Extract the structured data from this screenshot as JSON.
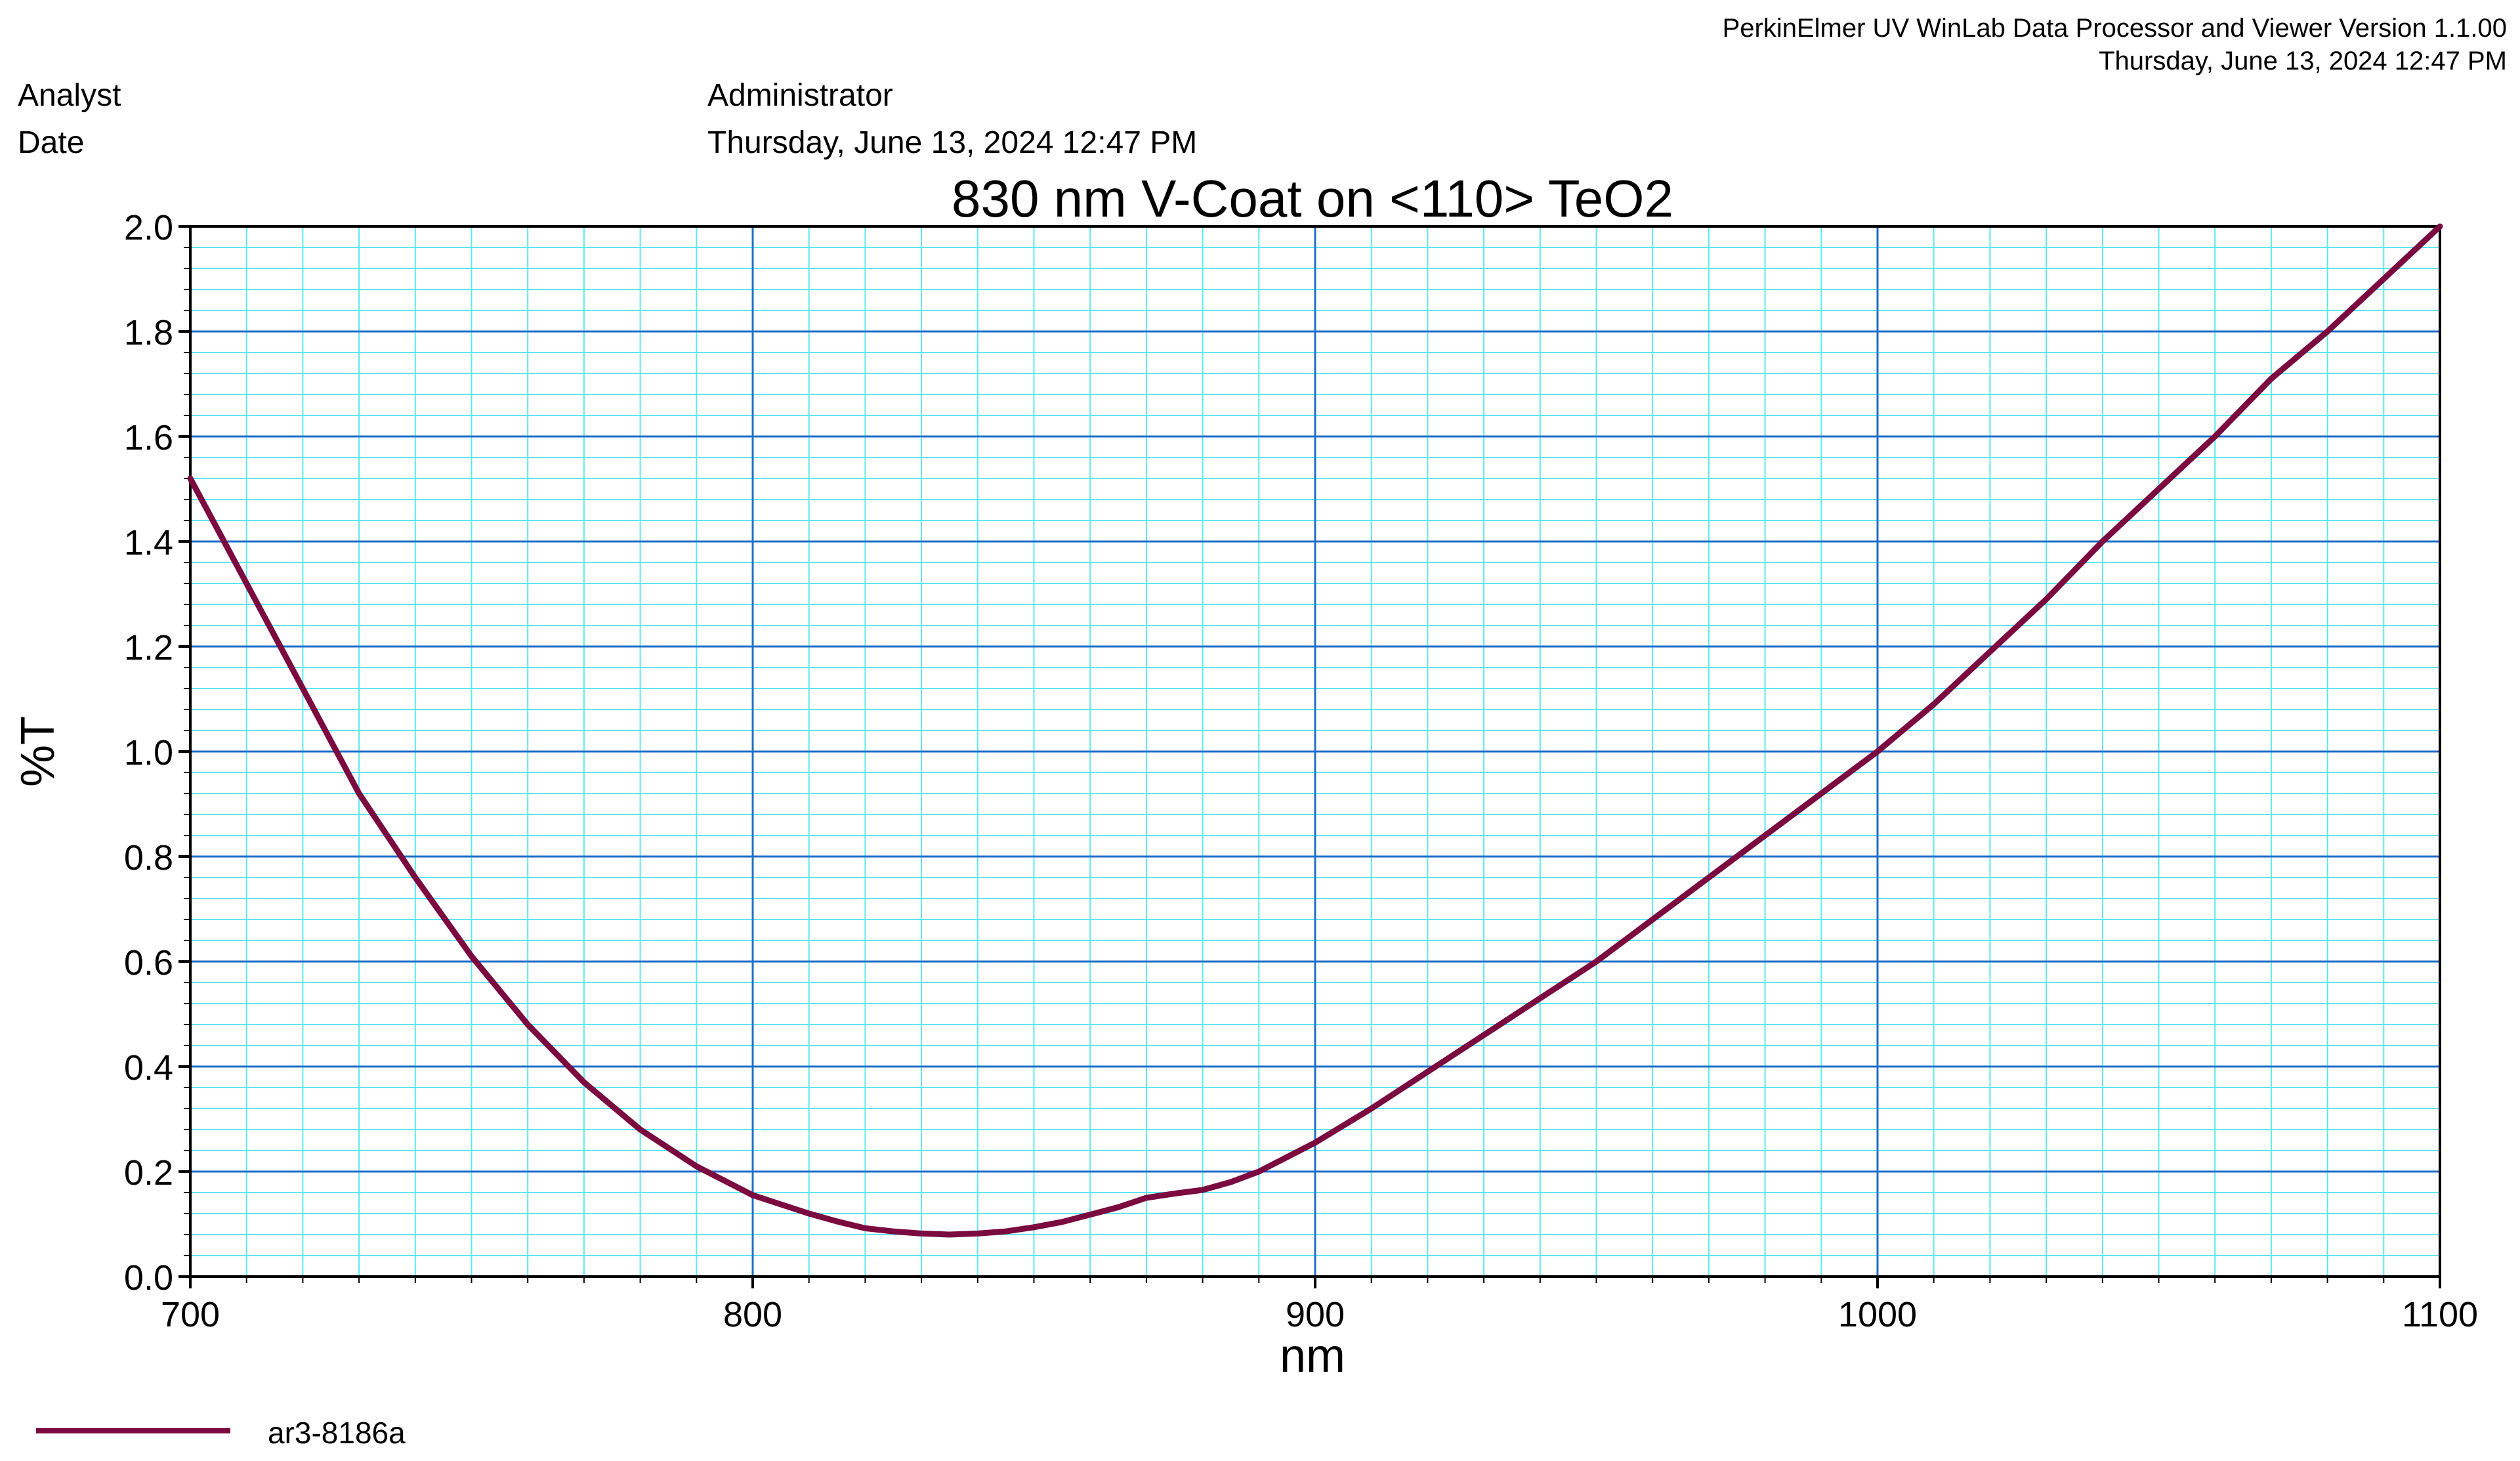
{
  "header": {
    "software": "PerkinElmer UV WinLab Data Processor and Viewer Version 1.1.00",
    "datetime": "Thursday, June 13, 2024 12:47 PM"
  },
  "meta": {
    "analyst_label": "Analyst",
    "analyst_value": "Administrator",
    "date_label": "Date",
    "date_value": "Thursday, June 13, 2024 12:47 PM"
  },
  "colors": {
    "series": "#7a0a3f",
    "minor_grid": "#5ce8f0",
    "major_grid": "#1e6fc8"
  },
  "chart_data": {
    "type": "line",
    "title": "830 nm V-Coat on <110> TeO2",
    "xlabel": "nm",
    "ylabel": "%T",
    "xlim": [
      700,
      1100
    ],
    "ylim": [
      0.0,
      2.0
    ],
    "xticks": [
      "700",
      "800",
      "900",
      "1000",
      "1100"
    ],
    "yticks": [
      "0.0",
      "0.2",
      "0.4",
      "0.6",
      "0.8",
      "1.0",
      "1.2",
      "1.4",
      "1.6",
      "1.8",
      "2.0"
    ],
    "grid": true,
    "legend_position": "bottom-left",
    "series": [
      {
        "name": "ar3-8186a",
        "x": [
          700,
          710,
          720,
          730,
          740,
          750,
          760,
          770,
          780,
          790,
          800,
          810,
          815,
          820,
          825,
          830,
          835,
          840,
          845,
          850,
          855,
          860,
          865,
          870,
          875,
          880,
          885,
          890,
          900,
          910,
          920,
          930,
          940,
          950,
          960,
          970,
          980,
          990,
          1000,
          1010,
          1020,
          1030,
          1040,
          1050,
          1060,
          1070,
          1080,
          1090,
          1100
        ],
        "y": [
          1.52,
          1.32,
          1.12,
          0.92,
          0.76,
          0.61,
          0.48,
          0.37,
          0.28,
          0.21,
          0.155,
          0.12,
          0.105,
          0.092,
          0.086,
          0.082,
          0.08,
          0.082,
          0.086,
          0.094,
          0.104,
          0.118,
          0.132,
          0.15,
          0.158,
          0.165,
          0.18,
          0.2,
          0.255,
          0.32,
          0.39,
          0.46,
          0.53,
          0.6,
          0.68,
          0.76,
          0.84,
          0.92,
          1.0,
          1.09,
          1.19,
          1.29,
          1.4,
          1.5,
          1.6,
          1.71,
          1.8,
          1.9,
          2.0
        ]
      }
    ]
  }
}
